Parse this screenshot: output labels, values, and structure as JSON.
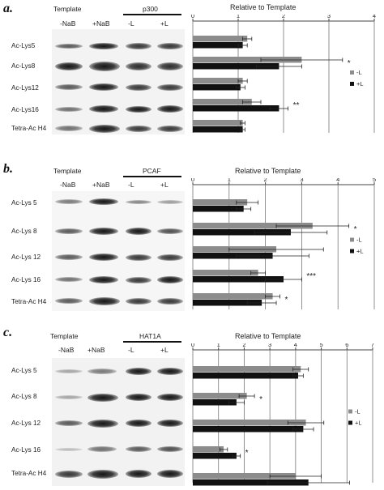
{
  "colors": {
    "light_bar": "#8c8c8c",
    "dark_bar": "#111111"
  },
  "panels": [
    {
      "label": "a.",
      "template_label": "Template",
      "group_label": "p300",
      "lanes": [
        "-NaB",
        "+NaB",
        "-L",
        "+L"
      ],
      "rows": [
        "Ac-Lys5",
        "Ac-Lys8",
        "Ac-Lys12",
        "Ac-Lys16",
        "Tetra-Ac H4"
      ],
      "chart_title": "Relative to Template",
      "legend": [
        "-L",
        "+L"
      ],
      "chart_data": {
        "type": "bar",
        "orientation": "horizontal",
        "title": "Relative to Template",
        "xlim": [
          0,
          4
        ],
        "ticks": [
          "0",
          "1",
          "2",
          "3",
          "4"
        ],
        "categories": [
          "Ac-Lys5",
          "Ac-Lys8",
          "Ac-Lys12",
          "Ac-Lys16",
          "Tetra-Ac H4"
        ],
        "series": [
          {
            "name": "-L",
            "values": [
              1.2,
              2.4,
              1.1,
              1.3,
              1.1
            ],
            "errors": [
              0.1,
              0.9,
              0.1,
              0.2,
              0.05
            ]
          },
          {
            "name": "+L",
            "values": [
              1.1,
              1.9,
              1.05,
              1.9,
              1.1
            ],
            "errors": [
              0.1,
              0.5,
              0.1,
              0.2,
              0.05
            ]
          }
        ],
        "annotations": [
          {
            "row": 1,
            "text": "*"
          },
          {
            "row": 3,
            "text": "**"
          }
        ]
      }
    },
    {
      "label": "b.",
      "template_label": "Template",
      "group_label": "PCAF",
      "lanes": [
        "-NaB",
        "+NaB",
        "-L",
        "+L"
      ],
      "rows": [
        "Ac-Lys 5",
        "Ac-Lys 8",
        "Ac-Lys 12",
        "Ac-Lys 16",
        "Tetra-Ac H4"
      ],
      "chart_title": "Relative to Template",
      "legend": [
        "-L",
        "+L"
      ],
      "chart_data": {
        "type": "bar",
        "orientation": "horizontal",
        "title": "Relative to Template",
        "xlim": [
          0,
          5
        ],
        "ticks": [
          "0",
          "1",
          "2",
          "3",
          "4",
          "5"
        ],
        "categories": [
          "Ac-Lys 5",
          "Ac-Lys 8",
          "Ac-Lys 12",
          "Ac-Lys 16",
          "Tetra-Ac H4"
        ],
        "series": [
          {
            "name": "-L",
            "values": [
              1.5,
              3.3,
              2.3,
              1.8,
              2.2
            ],
            "errors": [
              0.3,
              1.0,
              1.3,
              0.2,
              0.2
            ]
          },
          {
            "name": "+L",
            "values": [
              1.4,
              2.7,
              2.2,
              2.5,
              1.9
            ],
            "errors": [
              0.2,
              1.0,
              1.0,
              0.5,
              0.4
            ]
          }
        ],
        "annotations": [
          {
            "row": 1,
            "text": "*"
          },
          {
            "row": 3,
            "text": "***"
          },
          {
            "row": 4,
            "text": "*"
          }
        ]
      }
    },
    {
      "label": "c.",
      "template_label": "Template",
      "group_label": "HAT1A",
      "lanes": [
        "-NaB",
        "+NaB",
        "-L",
        "+L"
      ],
      "rows": [
        "Ac-Lys 5",
        "Ac-Lys 8",
        "Ac-Lys 12",
        "Ac-Lys 16",
        "Tetra-Ac H4"
      ],
      "chart_title": "Relative to Template",
      "legend": [
        "-L",
        "+L"
      ],
      "chart_data": {
        "type": "bar",
        "orientation": "horizontal",
        "title": "Relative to Template",
        "xlim": [
          0,
          7
        ],
        "ticks": [
          "0",
          "1",
          "2",
          "3",
          "4",
          "5",
          "6",
          "7"
        ],
        "categories": [
          "Ac-Lys 5",
          "Ac-Lys 8",
          "Ac-Lys 12",
          "Ac-Lys 16",
          "Tetra-Ac H4"
        ],
        "series": [
          {
            "name": "-L",
            "values": [
              4.2,
              2.1,
              4.4,
              1.2,
              4.0
            ],
            "errors": [
              0.3,
              0.3,
              0.7,
              0.15,
              1.0
            ]
          },
          {
            "name": "+L",
            "values": [
              4.1,
              1.7,
              4.3,
              1.7,
              4.5
            ],
            "errors": [
              0.2,
              0.3,
              0.4,
              0.15,
              1.6
            ]
          }
        ],
        "annotations": [
          {
            "row": 1,
            "text": "*"
          },
          {
            "row": 3,
            "text": "*"
          }
        ]
      }
    }
  ]
}
